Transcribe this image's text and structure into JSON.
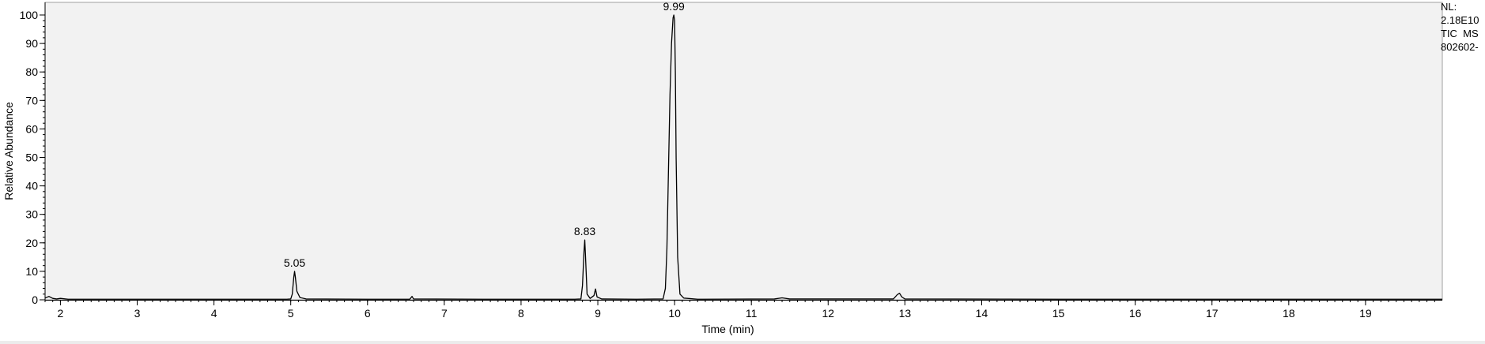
{
  "chart_data": {
    "type": "line",
    "xlabel": "Time (min)",
    "ylabel": "Relative Abundance",
    "xlim": [
      1.8,
      20.0
    ],
    "ylim": [
      0,
      100
    ],
    "xticks": [
      2,
      3,
      4,
      5,
      6,
      7,
      8,
      9,
      10,
      11,
      12,
      13,
      14,
      15,
      16,
      17,
      18,
      19
    ],
    "yticks": [
      0,
      10,
      20,
      30,
      40,
      50,
      60,
      70,
      80,
      90,
      100
    ],
    "grid": false,
    "info_lines": [
      "NL:",
      "2.18E10",
      "TIC  MS",
      "802602-"
    ],
    "peak_labels": [
      {
        "text": "5.05",
        "x": 5.05,
        "y": 10
      },
      {
        "text": "8.83",
        "x": 8.83,
        "y": 21
      },
      {
        "text": "9.99",
        "x": 9.99,
        "y": 100
      }
    ],
    "series": [
      {
        "points": [
          [
            1.8,
            0.6
          ],
          [
            1.85,
            1.2
          ],
          [
            1.9,
            0.5
          ],
          [
            1.95,
            0.3
          ],
          [
            2.0,
            0.5
          ],
          [
            2.1,
            0.2
          ],
          [
            3.0,
            0.2
          ],
          [
            4.0,
            0.2
          ],
          [
            4.95,
            0.2
          ],
          [
            5.0,
            0.3
          ],
          [
            5.02,
            2.0
          ],
          [
            5.04,
            8.0
          ],
          [
            5.05,
            10.0
          ],
          [
            5.06,
            8.0
          ],
          [
            5.08,
            3.0
          ],
          [
            5.12,
            0.8
          ],
          [
            5.2,
            0.3
          ],
          [
            6.0,
            0.2
          ],
          [
            6.55,
            0.2
          ],
          [
            6.58,
            1.2
          ],
          [
            6.6,
            0.3
          ],
          [
            7.5,
            0.2
          ],
          [
            8.7,
            0.2
          ],
          [
            8.78,
            0.3
          ],
          [
            8.8,
            5.0
          ],
          [
            8.82,
            17.0
          ],
          [
            8.83,
            21.0
          ],
          [
            8.84,
            15.0
          ],
          [
            8.86,
            2.0
          ],
          [
            8.9,
            0.5
          ],
          [
            8.95,
            1.5
          ],
          [
            8.97,
            3.8
          ],
          [
            8.99,
            1.0
          ],
          [
            9.05,
            0.3
          ],
          [
            9.5,
            0.2
          ],
          [
            9.85,
            0.3
          ],
          [
            9.88,
            4.0
          ],
          [
            9.9,
            18.0
          ],
          [
            9.92,
            45.0
          ],
          [
            9.94,
            72.0
          ],
          [
            9.96,
            90.0
          ],
          [
            9.98,
            99.0
          ],
          [
            9.99,
            100.0
          ],
          [
            10.0,
            98.0
          ],
          [
            10.01,
            80.0
          ],
          [
            10.02,
            50.0
          ],
          [
            10.04,
            15.0
          ],
          [
            10.07,
            2.0
          ],
          [
            10.12,
            0.6
          ],
          [
            10.3,
            0.2
          ],
          [
            11.3,
            0.3
          ],
          [
            11.4,
            0.7
          ],
          [
            11.5,
            0.3
          ],
          [
            12.85,
            0.3
          ],
          [
            12.9,
            1.8
          ],
          [
            12.93,
            2.3
          ],
          [
            12.96,
            1.0
          ],
          [
            13.0,
            0.3
          ],
          [
            15.0,
            0.2
          ],
          [
            18.0,
            0.2
          ],
          [
            20.0,
            0.2
          ]
        ]
      }
    ]
  }
}
